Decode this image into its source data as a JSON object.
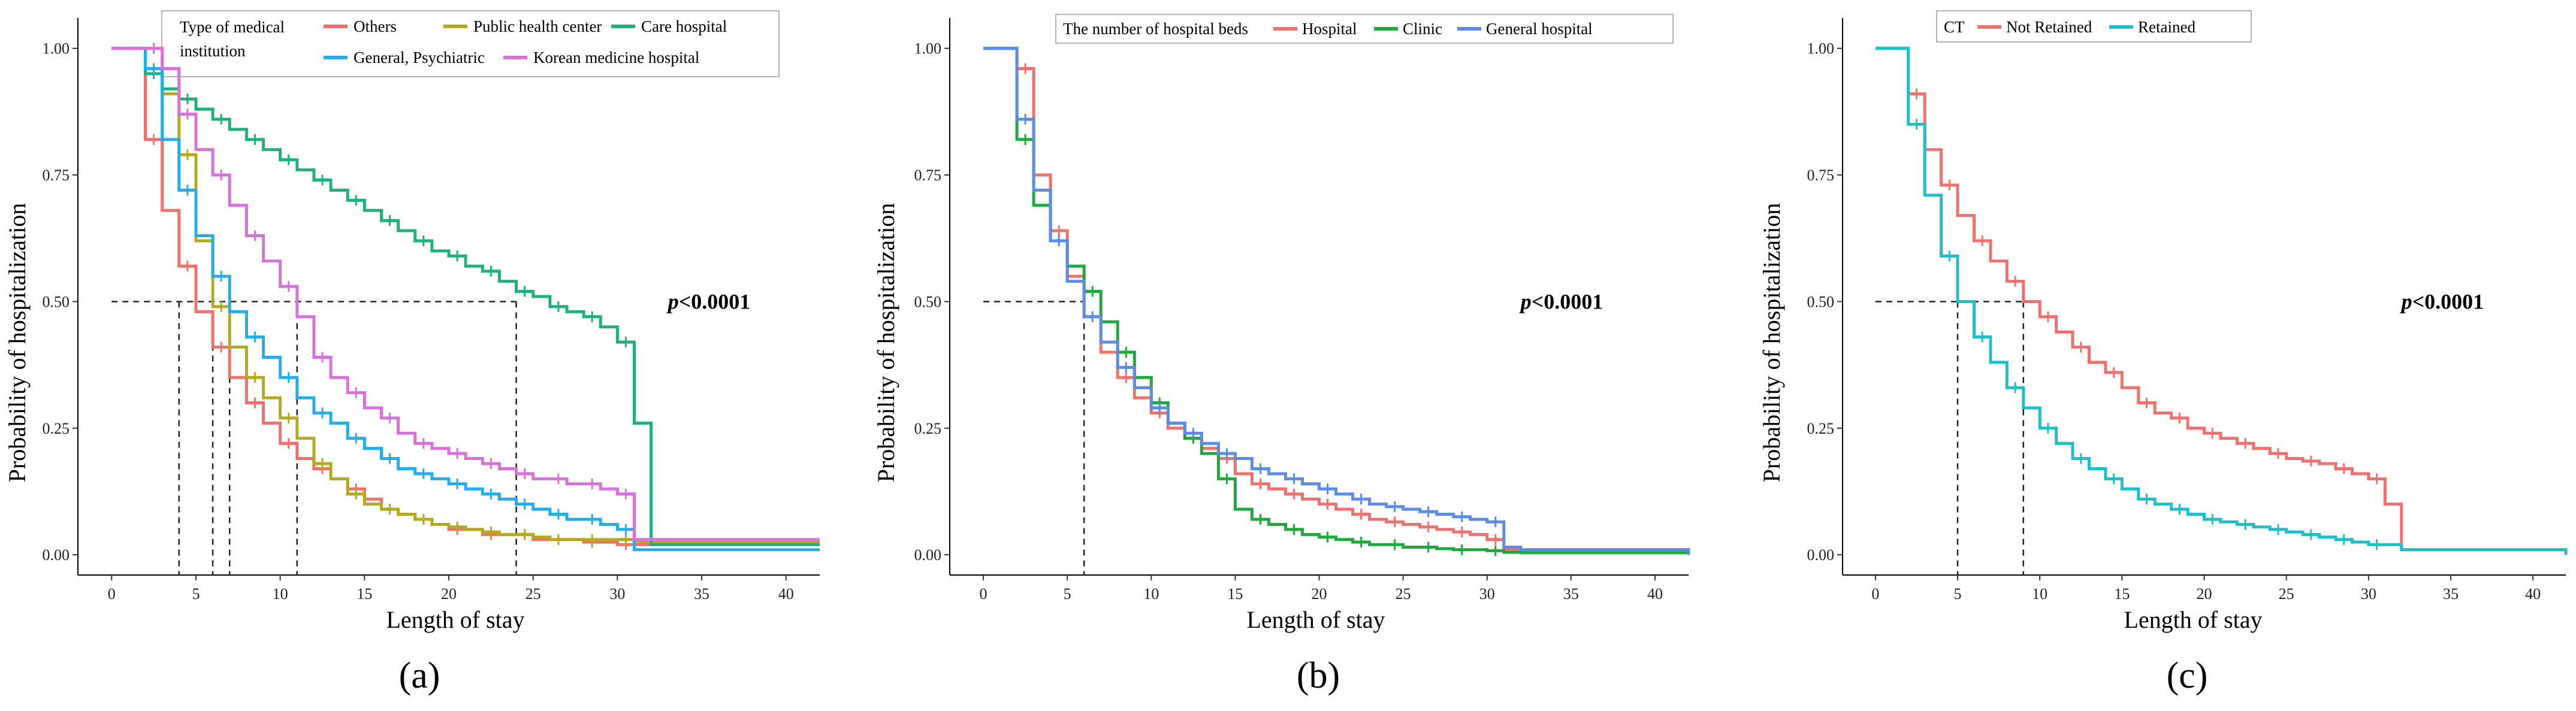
{
  "chart_data": [
    {
      "type": "line",
      "panel_label": "(a)",
      "xlabel": "Length of stay",
      "ylabel": "Probability of hospitalization",
      "xlim": [
        -2,
        42
      ],
      "ylim": [
        -0.04,
        1.06
      ],
      "xticks": [
        0,
        5,
        10,
        15,
        20,
        25,
        30,
        35,
        40
      ],
      "yticks": [
        "0.00",
        "0.25",
        "0.50",
        "0.75",
        "1.00"
      ],
      "grid": false,
      "legend_title": "Type of medical institution",
      "legend_title_lines": [
        "Type of medical",
        "institution"
      ],
      "annotation": "p<0.0001",
      "annotation_prefix": "p",
      "annotation_rest": "<0.0001",
      "annotation_at": [
        33,
        0.5
      ],
      "median_lines": [
        4,
        6,
        7,
        11,
        24
      ],
      "median_level": 0.5,
      "series": [
        {
          "name": "Others",
          "color": "#F0706E",
          "x": [
            1,
            2,
            3,
            4,
            5,
            6,
            7,
            8,
            9,
            10,
            11,
            12,
            13,
            14,
            15,
            16,
            17,
            18,
            19,
            20,
            21,
            22,
            23,
            24,
            25,
            26,
            27,
            28,
            29,
            30,
            31,
            32,
            42
          ],
          "y": [
            1.0,
            0.82,
            0.68,
            0.57,
            0.48,
            0.41,
            0.35,
            0.3,
            0.26,
            0.22,
            0.19,
            0.17,
            0.15,
            0.13,
            0.11,
            0.09,
            0.08,
            0.07,
            0.06,
            0.05,
            0.05,
            0.04,
            0.04,
            0.04,
            0.03,
            0.03,
            0.03,
            0.025,
            0.025,
            0.02,
            0.02,
            0.02,
            0.02
          ]
        },
        {
          "name": "Public health center",
          "color": "#B5A91E",
          "x": [
            1,
            2,
            3,
            4,
            5,
            6,
            7,
            8,
            9,
            10,
            11,
            12,
            13,
            14,
            15,
            16,
            17,
            18,
            19,
            20,
            21,
            22,
            23,
            24,
            25,
            26,
            27,
            28,
            29,
            30,
            31,
            32,
            42
          ],
          "y": [
            1.0,
            1.0,
            0.91,
            0.79,
            0.62,
            0.49,
            0.41,
            0.35,
            0.31,
            0.27,
            0.23,
            0.18,
            0.15,
            0.12,
            0.1,
            0.09,
            0.08,
            0.07,
            0.06,
            0.055,
            0.05,
            0.045,
            0.04,
            0.04,
            0.035,
            0.03,
            0.03,
            0.03,
            0.03,
            0.03,
            0.025,
            0.025,
            0.025
          ]
        },
        {
          "name": "Care hospital",
          "color": "#1FB07E",
          "x": [
            1,
            2,
            3,
            4,
            5,
            6,
            7,
            8,
            9,
            10,
            11,
            12,
            13,
            14,
            15,
            16,
            17,
            18,
            19,
            20,
            21,
            22,
            23,
            24,
            25,
            26,
            27,
            28,
            29,
            30,
            31,
            32,
            42
          ],
          "y": [
            1.0,
            0.95,
            0.92,
            0.9,
            0.88,
            0.86,
            0.84,
            0.82,
            0.8,
            0.78,
            0.76,
            0.74,
            0.72,
            0.7,
            0.68,
            0.66,
            0.64,
            0.62,
            0.6,
            0.59,
            0.57,
            0.56,
            0.54,
            0.52,
            0.51,
            0.49,
            0.48,
            0.47,
            0.45,
            0.42,
            0.26,
            0.02,
            0.02
          ]
        },
        {
          "name": "General, Psychiatric",
          "color": "#22AEE8",
          "x": [
            1,
            2,
            3,
            4,
            5,
            6,
            7,
            8,
            9,
            10,
            11,
            12,
            13,
            14,
            15,
            16,
            17,
            18,
            19,
            20,
            21,
            22,
            23,
            24,
            25,
            26,
            27,
            28,
            29,
            30,
            31,
            32,
            42
          ],
          "y": [
            1.0,
            0.96,
            0.82,
            0.72,
            0.63,
            0.55,
            0.48,
            0.43,
            0.39,
            0.35,
            0.31,
            0.28,
            0.26,
            0.23,
            0.21,
            0.19,
            0.17,
            0.16,
            0.15,
            0.14,
            0.13,
            0.12,
            0.11,
            0.1,
            0.09,
            0.08,
            0.07,
            0.07,
            0.06,
            0.05,
            0.01,
            0.01,
            0.01
          ]
        },
        {
          "name": "Korean medicine hospital",
          "color": "#D971DB",
          "x": [
            1,
            2,
            3,
            4,
            5,
            6,
            7,
            8,
            9,
            10,
            11,
            12,
            13,
            14,
            15,
            16,
            17,
            18,
            19,
            20,
            21,
            22,
            23,
            24,
            25,
            26,
            27,
            28,
            29,
            30,
            31,
            32,
            42
          ],
          "y": [
            1.0,
            1.0,
            0.96,
            0.87,
            0.8,
            0.75,
            0.69,
            0.63,
            0.58,
            0.53,
            0.47,
            0.39,
            0.35,
            0.32,
            0.29,
            0.27,
            0.24,
            0.22,
            0.21,
            0.2,
            0.19,
            0.18,
            0.17,
            0.16,
            0.15,
            0.15,
            0.14,
            0.14,
            0.13,
            0.12,
            0.03,
            0.03,
            0.03
          ]
        }
      ]
    },
    {
      "type": "line",
      "panel_label": "(b)",
      "xlabel": "Length of stay",
      "ylabel": "Probability of hospitalization",
      "xlim": [
        -2,
        42
      ],
      "ylim": [
        -0.04,
        1.06
      ],
      "xticks": [
        0,
        5,
        10,
        15,
        20,
        25,
        30,
        35,
        40
      ],
      "yticks": [
        "0.00",
        "0.25",
        "0.50",
        "0.75",
        "1.00"
      ],
      "grid": false,
      "legend_title": "The number of hospital beds",
      "annotation": "p<0.0001",
      "annotation_prefix": "p",
      "annotation_rest": "<0.0001",
      "annotation_at": [
        32,
        0.5
      ],
      "median_lines": [
        6
      ],
      "median_level": 0.5,
      "series": [
        {
          "name": "Hospital",
          "color": "#F0706E",
          "x": [
            1,
            2,
            3,
            4,
            5,
            6,
            7,
            8,
            9,
            10,
            11,
            12,
            13,
            14,
            15,
            16,
            17,
            18,
            19,
            20,
            21,
            22,
            23,
            24,
            25,
            26,
            27,
            28,
            29,
            30,
            31,
            32,
            42
          ],
          "y": [
            1.0,
            0.96,
            0.75,
            0.64,
            0.55,
            0.47,
            0.4,
            0.35,
            0.31,
            0.28,
            0.25,
            0.23,
            0.21,
            0.19,
            0.16,
            0.14,
            0.13,
            0.12,
            0.11,
            0.1,
            0.09,
            0.08,
            0.07,
            0.065,
            0.06,
            0.055,
            0.05,
            0.045,
            0.04,
            0.03,
            0.01,
            0.01,
            0.0
          ]
        },
        {
          "name": "Clinic",
          "color": "#1CAA3A",
          "x": [
            1,
            2,
            3,
            4,
            5,
            6,
            7,
            8,
            9,
            10,
            11,
            12,
            13,
            14,
            15,
            16,
            17,
            18,
            19,
            20,
            21,
            22,
            23,
            24,
            25,
            26,
            27,
            28,
            29,
            30,
            31,
            32,
            42
          ],
          "y": [
            1.0,
            0.82,
            0.69,
            0.62,
            0.57,
            0.52,
            0.46,
            0.4,
            0.35,
            0.3,
            0.26,
            0.23,
            0.2,
            0.15,
            0.09,
            0.07,
            0.06,
            0.05,
            0.04,
            0.035,
            0.03,
            0.025,
            0.02,
            0.02,
            0.015,
            0.015,
            0.012,
            0.01,
            0.01,
            0.008,
            0.005,
            0.004,
            0.0
          ]
        },
        {
          "name": "General hospital",
          "color": "#5A8CE8",
          "x": [
            1,
            2,
            3,
            4,
            5,
            6,
            7,
            8,
            9,
            10,
            11,
            12,
            13,
            14,
            15,
            16,
            17,
            18,
            19,
            20,
            21,
            22,
            23,
            24,
            25,
            26,
            27,
            28,
            29,
            30,
            31,
            32,
            42
          ],
          "y": [
            1.0,
            0.86,
            0.72,
            0.62,
            0.54,
            0.47,
            0.42,
            0.37,
            0.33,
            0.29,
            0.26,
            0.24,
            0.22,
            0.2,
            0.19,
            0.17,
            0.16,
            0.15,
            0.14,
            0.13,
            0.12,
            0.11,
            0.1,
            0.095,
            0.09,
            0.085,
            0.08,
            0.075,
            0.07,
            0.065,
            0.015,
            0.01,
            0.0
          ]
        }
      ]
    },
    {
      "type": "line",
      "panel_label": "(c)",
      "xlabel": "Length of stay",
      "ylabel": "Probability of hospitalization",
      "xlim": [
        -2,
        42
      ],
      "ylim": [
        -0.04,
        1.06
      ],
      "xticks": [
        0,
        5,
        10,
        15,
        20,
        25,
        30,
        35,
        40
      ],
      "yticks": [
        "0.00",
        "0.25",
        "0.50",
        "0.75",
        "1.00"
      ],
      "grid": false,
      "legend_title": "CT",
      "annotation": "p<0.0001",
      "annotation_prefix": "p",
      "annotation_rest": "<0.0001",
      "annotation_at": [
        32,
        0.5
      ],
      "median_lines": [
        5,
        9
      ],
      "median_level": 0.5,
      "series": [
        {
          "name": "Not Retained",
          "color": "#F0706E",
          "x": [
            1,
            2,
            3,
            4,
            5,
            6,
            7,
            8,
            9,
            10,
            11,
            12,
            13,
            14,
            15,
            16,
            17,
            18,
            19,
            20,
            21,
            22,
            23,
            24,
            25,
            26,
            27,
            28,
            29,
            30,
            31,
            32,
            42
          ],
          "y": [
            1.0,
            0.91,
            0.8,
            0.73,
            0.67,
            0.62,
            0.58,
            0.54,
            0.5,
            0.47,
            0.44,
            0.41,
            0.38,
            0.36,
            0.33,
            0.3,
            0.28,
            0.27,
            0.25,
            0.24,
            0.23,
            0.22,
            0.21,
            0.2,
            0.19,
            0.185,
            0.18,
            0.17,
            0.16,
            0.15,
            0.1,
            0.01,
            0.0
          ]
        },
        {
          "name": "Retained",
          "color": "#1FBFC9",
          "x": [
            1,
            2,
            3,
            4,
            5,
            6,
            7,
            8,
            9,
            10,
            11,
            12,
            13,
            14,
            15,
            16,
            17,
            18,
            19,
            20,
            21,
            22,
            23,
            24,
            25,
            26,
            27,
            28,
            29,
            30,
            31,
            32,
            42
          ],
          "y": [
            1.0,
            0.85,
            0.71,
            0.59,
            0.5,
            0.43,
            0.38,
            0.33,
            0.29,
            0.25,
            0.22,
            0.19,
            0.17,
            0.15,
            0.13,
            0.11,
            0.1,
            0.09,
            0.08,
            0.07,
            0.065,
            0.06,
            0.055,
            0.05,
            0.045,
            0.04,
            0.035,
            0.03,
            0.025,
            0.02,
            0.02,
            0.01,
            0.0
          ]
        }
      ]
    }
  ]
}
